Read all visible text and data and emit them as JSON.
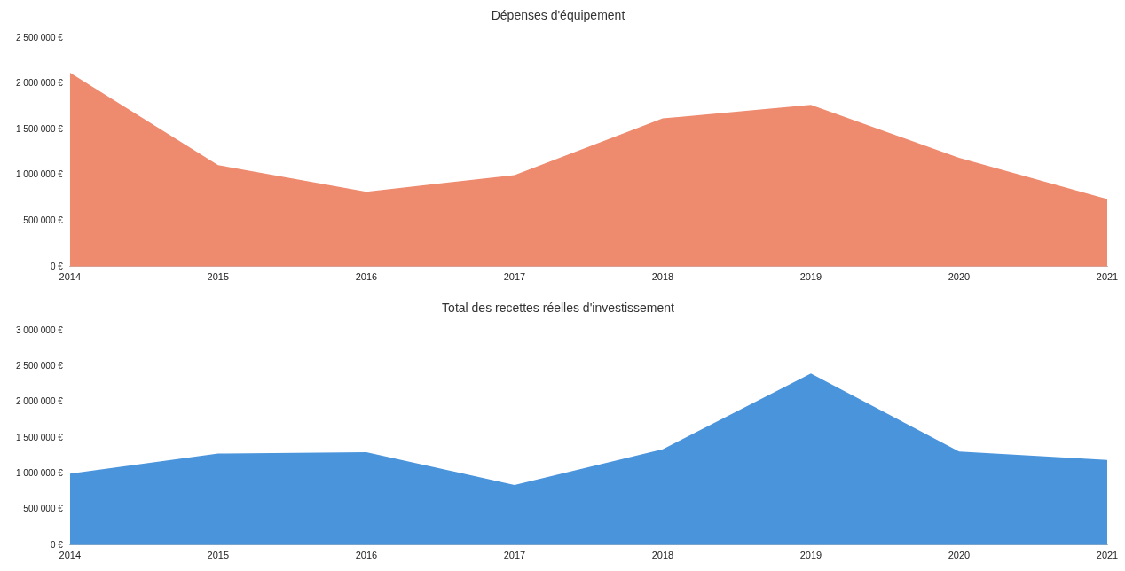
{
  "chart_data": [
    {
      "type": "area",
      "title": "Dépenses d'équipement",
      "categories": [
        "2014",
        "2015",
        "2016",
        "2017",
        "2018",
        "2019",
        "2020",
        "2021"
      ],
      "series": [
        {
          "color": "#ee8a6e",
          "values": [
            2120000,
            1110000,
            820000,
            1000000,
            1620000,
            1770000,
            1190000,
            740000
          ]
        }
      ],
      "ylim": [
        0,
        2500000
      ],
      "yticks": [
        {
          "value": 0,
          "label": "0 €"
        },
        {
          "value": 500000,
          "label": "500 000 €"
        },
        {
          "value": 1000000,
          "label": "1 000 000 €"
        },
        {
          "value": 1500000,
          "label": "1 500 000 €"
        },
        {
          "value": 2000000,
          "label": "2 000 000 €"
        },
        {
          "value": 2500000,
          "label": "2 500 000 €"
        }
      ],
      "grid": false,
      "legend": false
    },
    {
      "type": "area",
      "title": "Total des recettes réelles d'investissement",
      "categories": [
        "2014",
        "2015",
        "2016",
        "2017",
        "2018",
        "2019",
        "2020",
        "2021"
      ],
      "series": [
        {
          "color": "#4a94dc",
          "values": [
            1000000,
            1280000,
            1300000,
            840000,
            1340000,
            2400000,
            1310000,
            1190000
          ]
        }
      ],
      "ylim": [
        0,
        3000000
      ],
      "yticks": [
        {
          "value": 0,
          "label": "0 €"
        },
        {
          "value": 500000,
          "label": "500 000 €"
        },
        {
          "value": 1000000,
          "label": "1 000 000 €"
        },
        {
          "value": 1500000,
          "label": "1 500 000 €"
        },
        {
          "value": 2000000,
          "label": "2 000 000 €"
        },
        {
          "value": 2500000,
          "label": "2 500 000 €"
        },
        {
          "value": 3000000,
          "label": "3 000 000 €"
        }
      ],
      "grid": false,
      "legend": false
    }
  ]
}
